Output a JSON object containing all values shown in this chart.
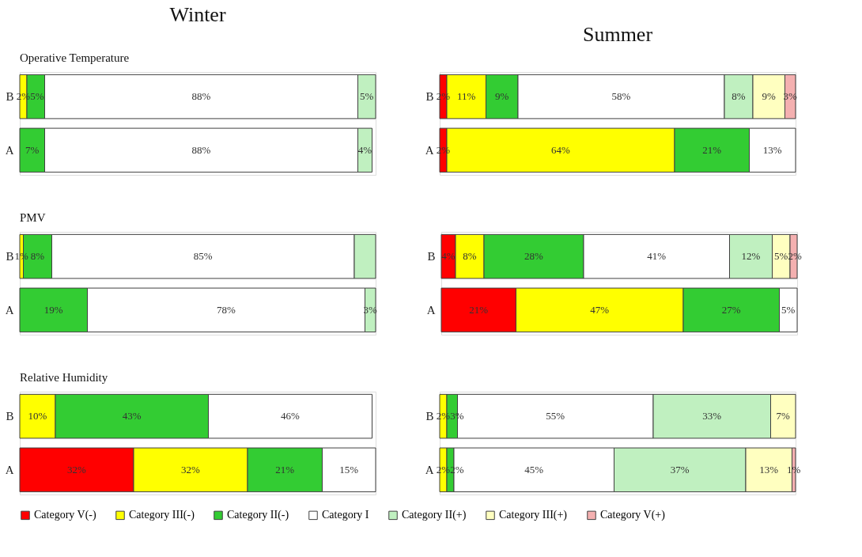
{
  "chart_data": [
    {
      "type": "bar",
      "orientation": "horizontal",
      "stacked": true,
      "title": "Winter",
      "subtitle": "Operative Temperature",
      "categories": [
        "B",
        "A"
      ],
      "xlim": [
        0,
        100
      ],
      "tick_labels": "y",
      "series": [
        {
          "color": "#ffff00",
          "values": [
            2,
            null
          ],
          "value_labels": [
            "2%",
            null
          ]
        },
        {
          "color": "#33cc33",
          "values": [
            5,
            7
          ],
          "value_labels": [
            "5%",
            "7%"
          ]
        },
        {
          "color": "#ffffff",
          "values": [
            88,
            88
          ],
          "value_labels": [
            "88%",
            "88%"
          ]
        },
        {
          "color": "#c0f0c0",
          "values": [
            5,
            4
          ],
          "value_labels": [
            "5%",
            "4%"
          ]
        }
      ]
    },
    {
      "type": "bar",
      "orientation": "horizontal",
      "stacked": true,
      "title": "Summer",
      "categories": [
        "B",
        "A"
      ],
      "xlim": [
        0,
        100
      ],
      "tick_labels": "y",
      "series": [
        {
          "color": "#ff0000",
          "values": [
            2,
            2
          ],
          "value_labels": [
            "2%",
            "2%"
          ]
        },
        {
          "color": "#ffff00",
          "values": [
            11,
            64
          ],
          "value_labels": [
            "11%",
            "64%"
          ]
        },
        {
          "color": "#33cc33",
          "values": [
            9,
            21
          ],
          "value_labels": [
            "9%",
            "21%"
          ]
        },
        {
          "color": "#ffffff",
          "values": [
            58,
            13
          ],
          "value_labels": [
            "58%",
            "13%"
          ]
        },
        {
          "color": "#c0f0c0",
          "values": [
            8,
            null
          ],
          "value_labels": [
            "8%",
            null
          ]
        },
        {
          "color": "#ffffc0",
          "values": [
            9,
            null
          ],
          "value_labels": [
            "9%",
            null
          ]
        },
        {
          "color": "#f4b0b0",
          "values": [
            3,
            null
          ],
          "value_labels": [
            "3%",
            null
          ]
        }
      ]
    },
    {
      "type": "bar",
      "orientation": "horizontal",
      "stacked": true,
      "subtitle": "PMV",
      "categories": [
        "B",
        "A"
      ],
      "xlim": [
        0,
        100
      ],
      "tick_labels": "y",
      "series": [
        {
          "color": "#ffff00",
          "values": [
            1,
            null
          ],
          "value_labels": [
            "1%",
            null
          ]
        },
        {
          "color": "#33cc33",
          "values": [
            8,
            19
          ],
          "value_labels": [
            "8%",
            "19%"
          ]
        },
        {
          "color": "#ffffff",
          "values": [
            85,
            78
          ],
          "value_labels": [
            "85%",
            "78%"
          ]
        },
        {
          "color": "#c0f0c0",
          "values": [
            6,
            3
          ],
          "value_labels": [
            null,
            "3%"
          ]
        }
      ]
    },
    {
      "type": "bar",
      "orientation": "horizontal",
      "stacked": true,
      "categories": [
        "B",
        "A"
      ],
      "xlim": [
        0,
        100
      ],
      "tick_labels": "y",
      "series": [
        {
          "color": "#ff0000",
          "values": [
            4,
            21
          ],
          "value_labels": [
            "4%",
            "21%"
          ]
        },
        {
          "color": "#ffff00",
          "values": [
            8,
            47
          ],
          "value_labels": [
            "8%",
            "47%"
          ]
        },
        {
          "color": "#33cc33",
          "values": [
            28,
            27
          ],
          "value_labels": [
            "28%",
            "27%"
          ]
        },
        {
          "color": "#ffffff",
          "values": [
            41,
            5
          ],
          "value_labels": [
            "41%",
            "5%"
          ]
        },
        {
          "color": "#c0f0c0",
          "values": [
            12,
            null
          ],
          "value_labels": [
            "12%",
            null
          ]
        },
        {
          "color": "#ffffc0",
          "values": [
            5,
            null
          ],
          "value_labels": [
            "5%",
            null
          ]
        },
        {
          "color": "#f4b0b0",
          "values": [
            2,
            null
          ],
          "value_labels": [
            "2%",
            null
          ]
        }
      ]
    },
    {
      "type": "bar",
      "orientation": "horizontal",
      "stacked": true,
      "subtitle": "Relative Humidity",
      "categories": [
        "B",
        "A"
      ],
      "xlim": [
        0,
        100
      ],
      "tick_labels": "y",
      "series": [
        {
          "color": "#ff0000",
          "values": [
            null,
            32
          ],
          "value_labels": [
            null,
            "32%"
          ]
        },
        {
          "color": "#ffff00",
          "values": [
            10,
            32
          ],
          "value_labels": [
            "10%",
            "32%"
          ]
        },
        {
          "color": "#33cc33",
          "values": [
            43,
            21
          ],
          "value_labels": [
            "43%",
            "21%"
          ]
        },
        {
          "color": "#ffffff",
          "values": [
            46,
            15
          ],
          "value_labels": [
            "46%",
            "15%"
          ]
        }
      ]
    },
    {
      "type": "bar",
      "orientation": "horizontal",
      "stacked": true,
      "categories": [
        "B",
        "A"
      ],
      "xlim": [
        0,
        100
      ],
      "tick_labels": "y",
      "legend": "bottom",
      "series": [
        {
          "name": "Category V(-)",
          "color": "#ff0000",
          "values": [
            null,
            null
          ],
          "value_labels": [
            null,
            null
          ]
        },
        {
          "name": "Category III(-)",
          "color": "#ffff00",
          "values": [
            2,
            2
          ],
          "value_labels": [
            "2%",
            "2%"
          ]
        },
        {
          "name": "Category II(-)",
          "color": "#33cc33",
          "values": [
            3,
            2
          ],
          "value_labels": [
            "3%",
            "2%"
          ]
        },
        {
          "name": "Category I",
          "color": "#ffffff",
          "values": [
            55,
            45
          ],
          "value_labels": [
            "55%",
            "45%"
          ]
        },
        {
          "name": "Category II(+)",
          "color": "#c0f0c0",
          "values": [
            33,
            37
          ],
          "value_labels": [
            "33%",
            "37%"
          ]
        },
        {
          "name": "Category III(+)",
          "color": "#ffffc0",
          "values": [
            7,
            13
          ],
          "value_labels": [
            "7%",
            "13%"
          ]
        },
        {
          "name": "Category V(+)",
          "color": "#f4b0b0",
          "values": [
            null,
            1
          ],
          "value_labels": [
            null,
            "1%"
          ]
        }
      ]
    }
  ]
}
